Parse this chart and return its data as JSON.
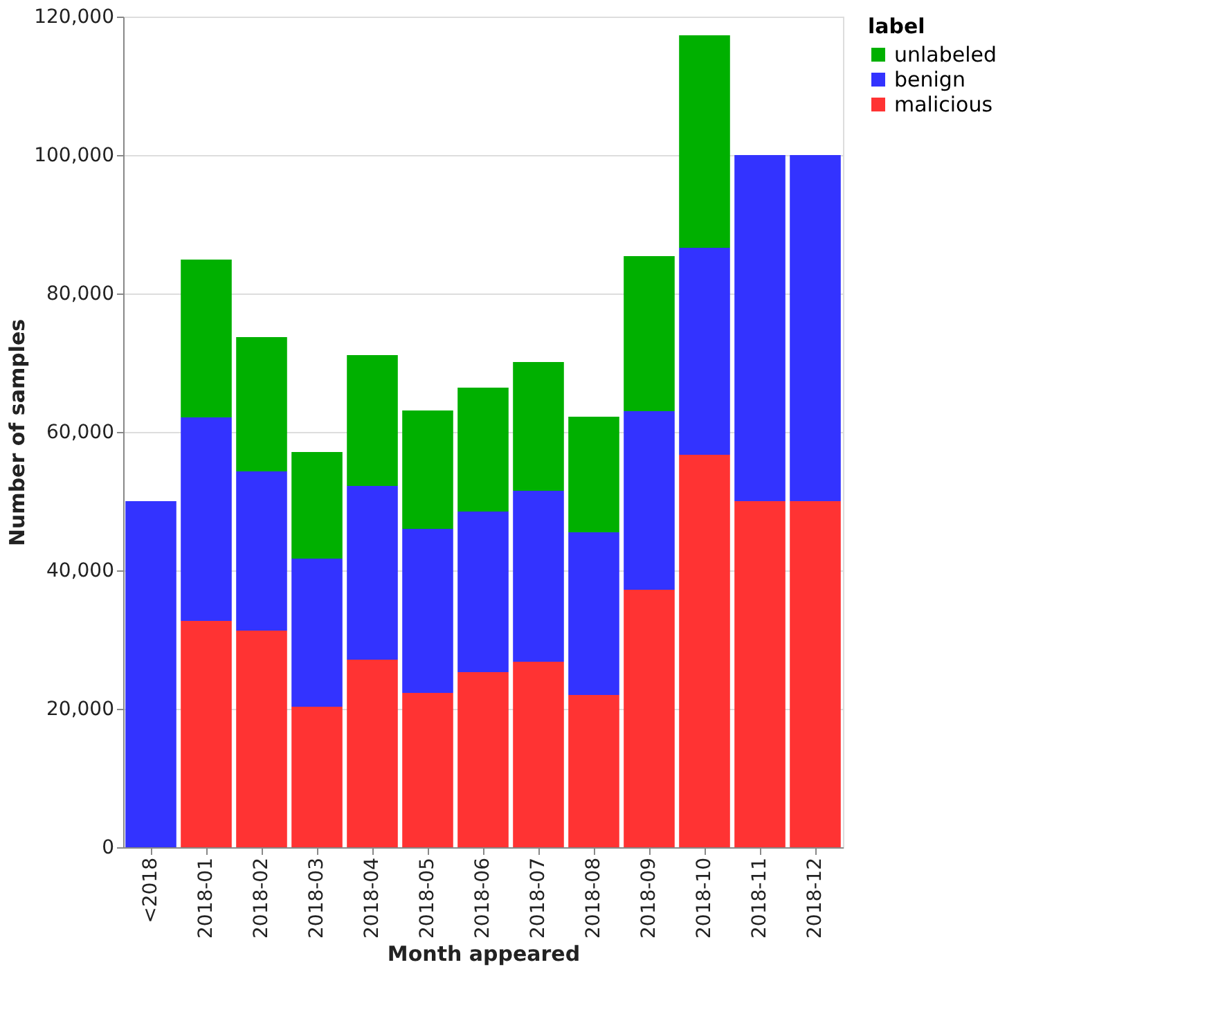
{
  "chart_data": {
    "type": "bar",
    "stacked": true,
    "xlabel": "Month appeared",
    "ylabel": "Number of samples",
    "legend_title": "label",
    "categories": [
      "<2018",
      "2018-01",
      "2018-02",
      "2018-03",
      "2018-04",
      "2018-05",
      "2018-06",
      "2018-07",
      "2018-08",
      "2018-09",
      "2018-10",
      "2018-11",
      "2018-12"
    ],
    "series": [
      {
        "name": "malicious",
        "color": "#ff3333",
        "values": [
          0,
          32700,
          31300,
          20300,
          27100,
          22300,
          25300,
          26800,
          22000,
          37200,
          56700,
          50000,
          50000
        ]
      },
      {
        "name": "benign",
        "color": "#3333ff",
        "values": [
          50000,
          29400,
          23000,
          21400,
          25100,
          23700,
          23200,
          24700,
          23500,
          25800,
          29900,
          50000,
          50000
        ]
      },
      {
        "name": "unlabeled",
        "color": "#00b000",
        "values": [
          0,
          22800,
          19400,
          15400,
          18900,
          17100,
          17900,
          18600,
          16700,
          22400,
          30700,
          0,
          0
        ]
      }
    ],
    "ylim": [
      0,
      120000
    ],
    "yticks": [
      {
        "value": 0,
        "label": "0"
      },
      {
        "value": 20000,
        "label": "20,000"
      },
      {
        "value": 40000,
        "label": "40,000"
      },
      {
        "value": 60000,
        "label": "60,000"
      },
      {
        "value": 80000,
        "label": "80,000"
      },
      {
        "value": 100000,
        "label": "100,000"
      },
      {
        "value": 120000,
        "label": "120,000"
      }
    ],
    "grid": "y",
    "legend": "right"
  }
}
